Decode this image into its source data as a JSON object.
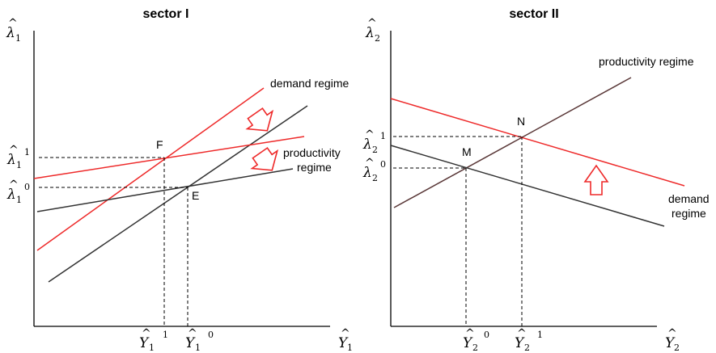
{
  "left_panel": {
    "title": "sector I",
    "y_axis": {
      "symbol": "λ",
      "sub": "1"
    },
    "x_axis": {
      "symbol": "Y",
      "sub": "1"
    },
    "labels": {
      "demand_regime": "demand regime",
      "productivity_regime_line1": "productivity",
      "productivity_regime_line2": "regime"
    },
    "points": {
      "F": "F",
      "E": "E"
    },
    "ticks": {
      "lambda_1": {
        "symbol": "λ",
        "sub": "1",
        "sup": "1"
      },
      "lambda_0": {
        "symbol": "λ",
        "sub": "1",
        "sup": "0"
      },
      "Y_1": {
        "symbol": "Y",
        "sub": "1",
        "sup": "1"
      },
      "Y_0": {
        "symbol": "Y",
        "sub": "1",
        "sup": "0"
      }
    }
  },
  "right_panel": {
    "title": "sector II",
    "y_axis": {
      "symbol": "λ",
      "sub": "2"
    },
    "x_axis": {
      "symbol": "Y",
      "sub": "2"
    },
    "labels": {
      "productivity_regime": "productivity regime",
      "demand_regime_line1": "demand",
      "demand_regime_line2": "regime"
    },
    "points": {
      "N": "N",
      "M": "M"
    },
    "ticks": {
      "lambda_1": {
        "symbol": "λ",
        "sub": "2",
        "sup": "1"
      },
      "lambda_0": {
        "symbol": "λ",
        "sub": "2",
        "sup": "0"
      },
      "Y_0": {
        "symbol": "Y",
        "sub": "2",
        "sup": "0"
      },
      "Y_1": {
        "symbol": "Y",
        "sub": "2",
        "sup": "1"
      }
    }
  },
  "hat_glyph": "^",
  "colors": {
    "shift_line": "#ee2a2a",
    "base_line": "#333333",
    "arrow": "#ee2a2a"
  }
}
